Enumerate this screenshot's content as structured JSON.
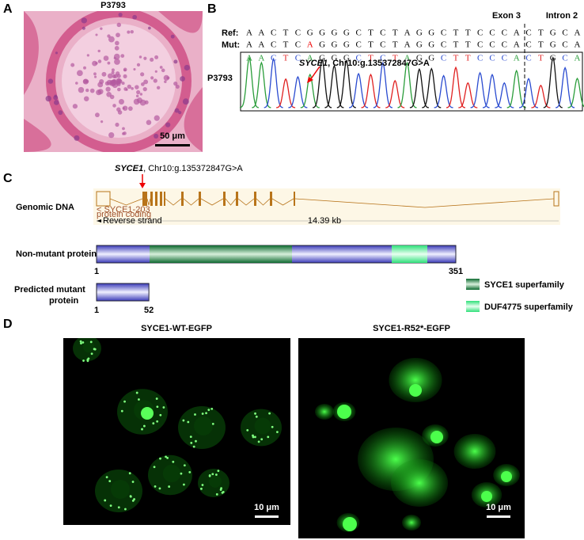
{
  "panel_a": {
    "label": "A",
    "title": "P3793",
    "scale_bar": "50 μm"
  },
  "panel_b": {
    "label": "B",
    "exon": "Exon 3",
    "intron": "Intron 2",
    "ref_label": "Ref:",
    "mut_label": "Mut:",
    "ref": [
      "A",
      "A",
      "C",
      "T",
      "C",
      "G",
      "G",
      "G",
      "G",
      "C",
      "T",
      "C",
      "T",
      "A",
      "G",
      "G",
      "C",
      "T",
      "T",
      "C",
      "C",
      "C",
      "A",
      "C",
      "T",
      "G",
      "C",
      "A"
    ],
    "mut": [
      "A",
      "A",
      "C",
      "T",
      "C",
      "A",
      "G",
      "G",
      "G",
      "C",
      "T",
      "C",
      "T",
      "A",
      "G",
      "G",
      "C",
      "T",
      "T",
      "C",
      "C",
      "C",
      "A",
      "C",
      "T",
      "G",
      "C",
      "A"
    ],
    "calls": [
      "A",
      "A",
      "C",
      "T",
      "C",
      "A",
      "G",
      "G",
      "G",
      "C",
      "T",
      "C",
      "T",
      "A",
      "G",
      "G",
      "C",
      "T",
      "T",
      "C",
      "C",
      "C",
      "A",
      "C",
      "T",
      "G",
      "C",
      "A"
    ],
    "sample": "P3793",
    "gene": "SYCE1",
    "mutation": ", Chr10:g.135372847G>A"
  },
  "panel_c": {
    "label": "C",
    "gene": "SYCE1",
    "mutation": ", Chr10:g.135372847G>A",
    "genomic_label": "Genomic DNA",
    "transcript": "< SYCE1-203",
    "biotype": "protein coding",
    "strand": "Reverse strand",
    "length": "14.39 kb",
    "nonmutant_label": "Non-mutant protein",
    "nonmutant_start": 1,
    "nonmutant_end": 351,
    "mutant_label": [
      "Predicted mutant",
      "protein"
    ],
    "mutant_start": 1,
    "mutant_end": 52,
    "legend": [
      "SYCE1 superfamily",
      "DUF4775 superfamily"
    ]
  },
  "panel_d": {
    "label": "D",
    "titles": [
      "SYCE1-WT-EGFP",
      "SYCE1-R52*-EGFP"
    ],
    "scale_bars": [
      "10 μm",
      "10 μm"
    ]
  }
}
